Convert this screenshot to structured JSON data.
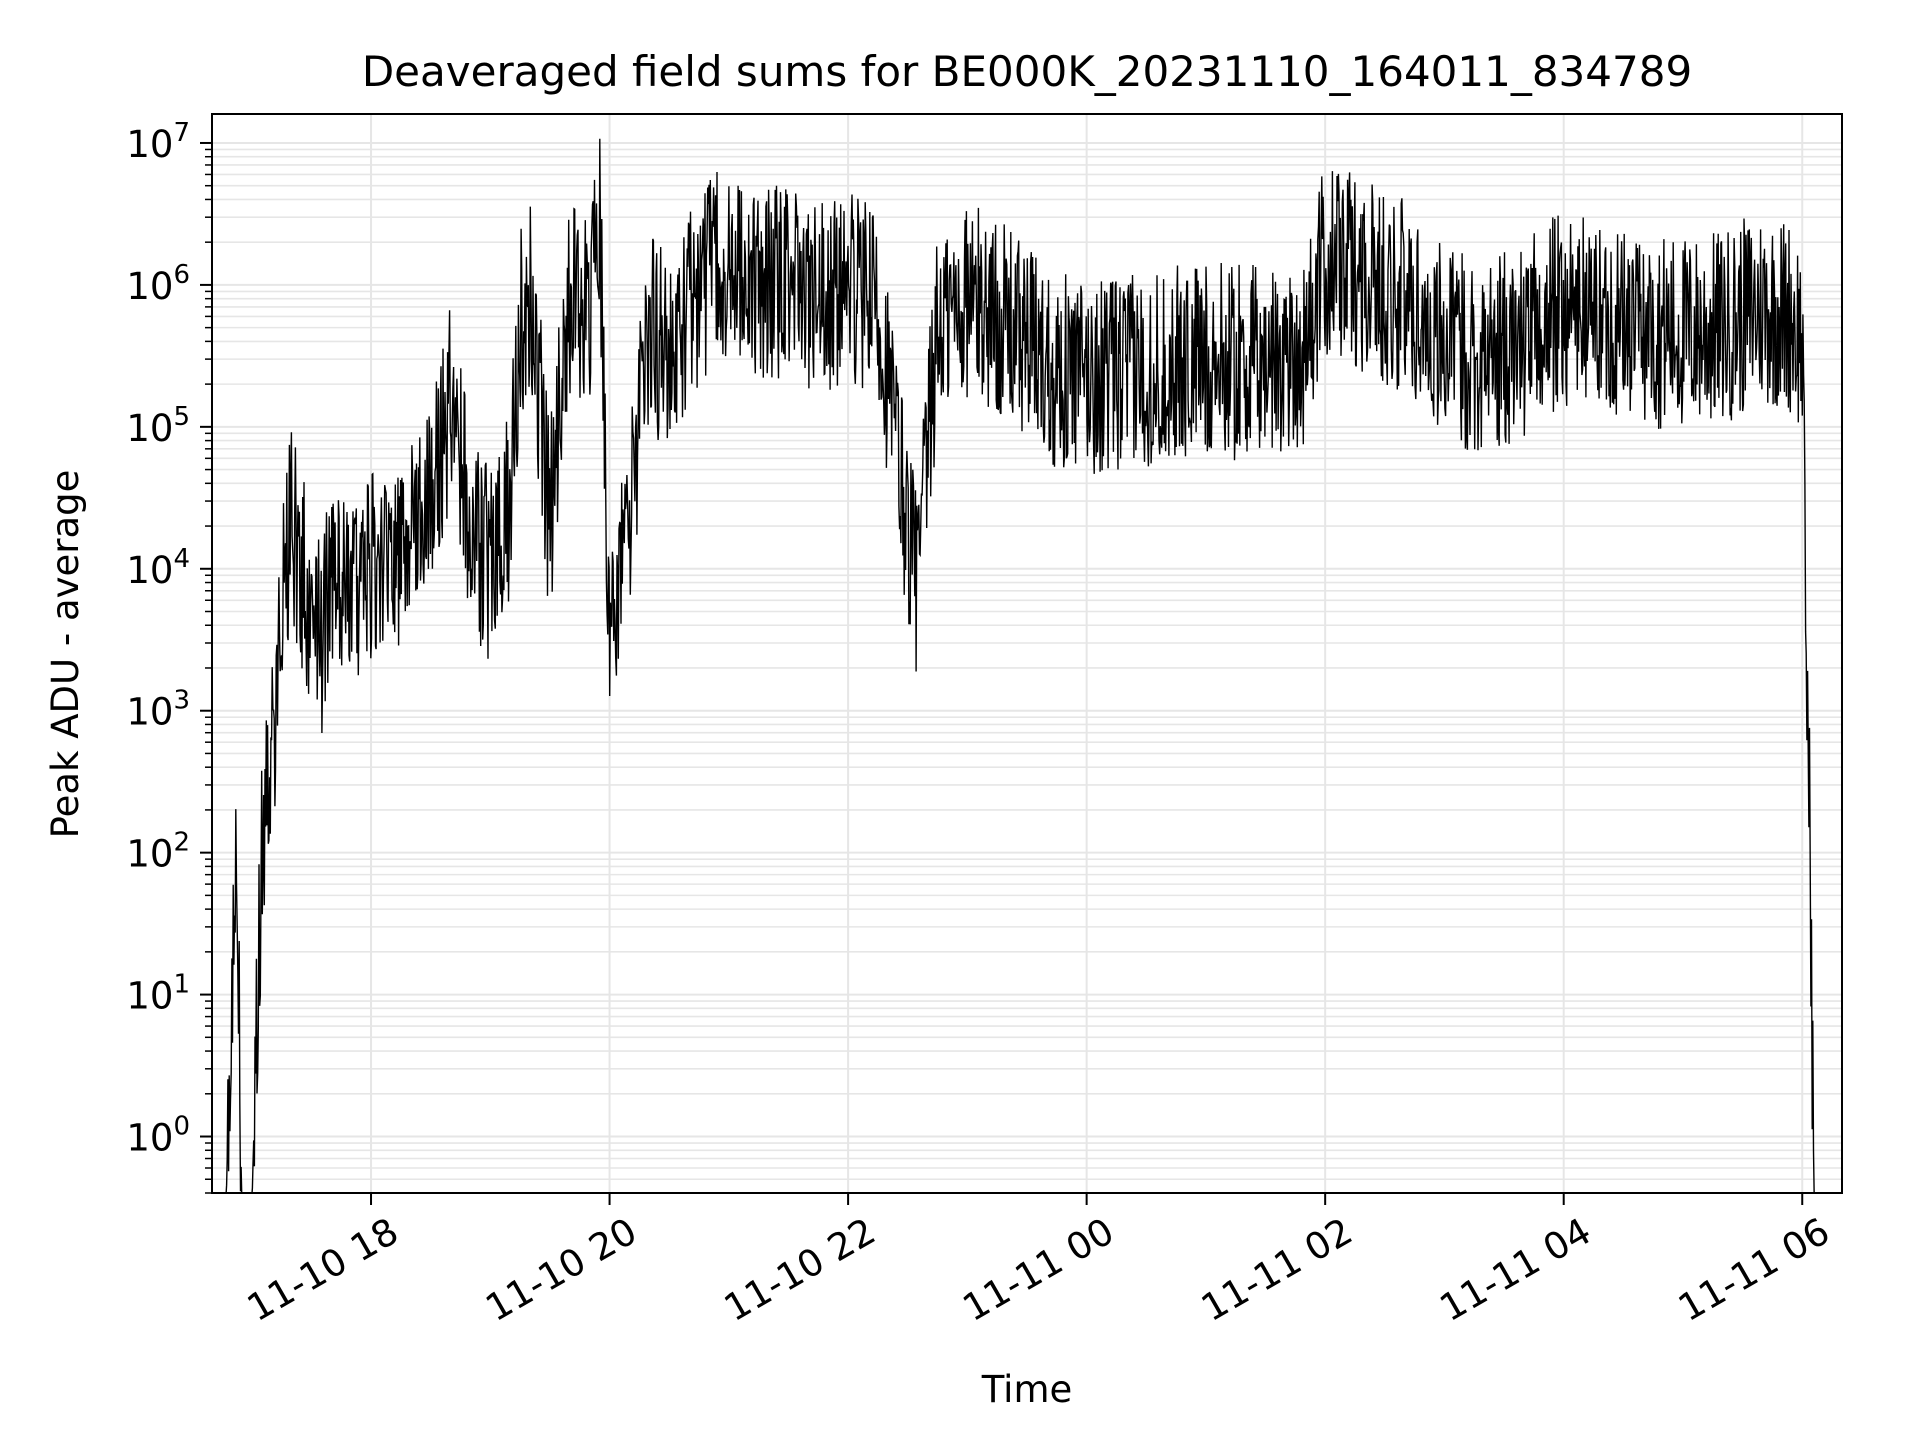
{
  "chart_data": {
    "type": "line",
    "title": "Deaveraged field sums for BE000K_20231110_164011_834789",
    "xlabel": "Time",
    "ylabel": "Peak ADU - average",
    "yscale": "log",
    "grid": true,
    "legend": "none",
    "xlim": [
      "2023-11-10 16:40",
      "2023-11-11 06:20"
    ],
    "ylim": [
      0.4,
      16000000
    ],
    "x_ticks": [
      "11-10 18",
      "11-10 20",
      "11-10 22",
      "11-11 00",
      "11-11 02",
      "11-11 04",
      "11-11 06"
    ],
    "x_tick_times": [
      "2023-11-10 18:00",
      "2023-11-10 20:00",
      "2023-11-10 22:00",
      "2023-11-11 00:00",
      "2023-11-11 02:00",
      "2023-11-11 04:00",
      "2023-11-11 06:00"
    ],
    "y_ticks": [
      {
        "base": "10",
        "exp": "0",
        "value": 1
      },
      {
        "base": "10",
        "exp": "1",
        "value": 10
      },
      {
        "base": "10",
        "exp": "2",
        "value": 100
      },
      {
        "base": "10",
        "exp": "3",
        "value": 1000
      },
      {
        "base": "10",
        "exp": "4",
        "value": 10000
      },
      {
        "base": "10",
        "exp": "5",
        "value": 100000
      },
      {
        "base": "10",
        "exp": "6",
        "value": 1000000
      },
      {
        "base": "10",
        "exp": "7",
        "value": 10000000
      }
    ],
    "line_color": "#000000",
    "grid_color": "#e6e6e6",
    "series": [
      {
        "x": [
          "2023-11-10 16:47",
          "2023-11-10 16:52",
          "2023-11-10 16:55",
          "2023-11-10 17:00",
          "2023-11-10 17:05",
          "2023-11-10 17:10",
          "2023-11-10 17:15",
          "2023-11-10 17:20",
          "2023-11-10 17:25",
          "2023-11-10 17:30",
          "2023-11-10 17:35",
          "2023-11-10 17:40",
          "2023-11-10 17:50",
          "2023-11-10 18:00",
          "2023-11-10 18:10",
          "2023-11-10 18:20",
          "2023-11-10 18:30",
          "2023-11-10 18:40",
          "2023-11-10 18:50",
          "2023-11-10 19:00",
          "2023-11-10 19:10",
          "2023-11-10 19:15",
          "2023-11-10 19:20",
          "2023-11-10 19:30",
          "2023-11-10 19:40",
          "2023-11-10 19:50",
          "2023-11-10 19:55",
          "2023-11-10 20:00",
          "2023-11-10 20:10",
          "2023-11-10 20:20",
          "2023-11-10 20:30",
          "2023-11-10 20:45",
          "2023-11-10 21:00",
          "2023-11-10 21:15",
          "2023-11-10 21:30",
          "2023-11-10 21:45",
          "2023-11-10 22:00",
          "2023-11-10 22:15",
          "2023-11-10 22:30",
          "2023-11-10 22:35",
          "2023-11-10 22:45",
          "2023-11-10 23:00",
          "2023-11-10 23:15",
          "2023-11-10 23:30",
          "2023-11-10 23:45",
          "2023-11-11 00:00",
          "2023-11-11 00:30",
          "2023-11-11 01:00",
          "2023-11-11 01:30",
          "2023-11-11 01:50",
          "2023-11-11 02:00",
          "2023-11-11 02:20",
          "2023-11-11 02:40",
          "2023-11-11 03:00",
          "2023-11-11 03:20",
          "2023-11-11 03:40",
          "2023-11-11 04:00",
          "2023-11-11 04:20",
          "2023-11-11 04:40",
          "2023-11-11 05:00",
          "2023-11-11 05:20",
          "2023-11-11 05:40",
          "2023-11-11 05:55",
          "2023-11-11 06:00",
          "2023-11-11 06:02",
          "2023-11-11 06:04",
          "2023-11-11 06:06"
        ],
        "y": [
          0.3,
          150,
          0.3,
          0.3,
          100,
          500,
          5000,
          20000,
          10000,
          5000,
          3000,
          8000,
          5000,
          10000,
          8000,
          20000,
          30000,
          150000,
          20000,
          10000,
          30000,
          500000,
          1000000,
          20000,
          800000,
          600000,
          3000000,
          3000,
          20000,
          500000,
          300000,
          1000000,
          1500000,
          900000,
          1200000,
          800000,
          900000,
          700000,
          20000,
          8000,
          500000,
          800000,
          600000,
          400000,
          250000,
          220000,
          250000,
          300000,
          280000,
          350000,
          1500000,
          1200000,
          800000,
          400000,
          300000,
          400000,
          700000,
          600000,
          500000,
          450000,
          500000,
          700000,
          600000,
          400000,
          3000,
          100,
          0.3
        ]
      }
    ]
  }
}
